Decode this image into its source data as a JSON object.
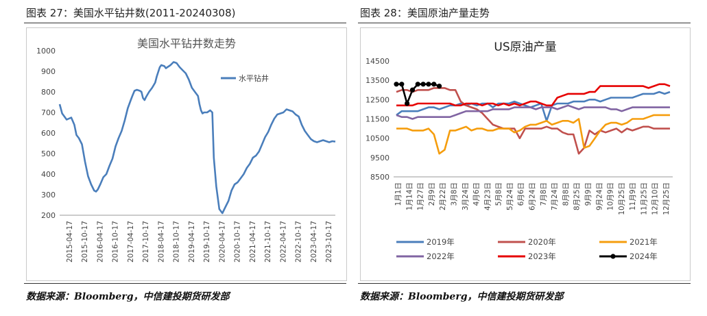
{
  "left_panel": {
    "figure_title": "图表 27：美国水平钻井数(2011-20240308)",
    "source": "数据来源：Bloomberg，中信建投期货研发部",
    "chart_data": {
      "type": "line",
      "title": "美国水平钻井数走势",
      "ylim": [
        200,
        1000
      ],
      "yticks": [
        200,
        300,
        400,
        500,
        600,
        700,
        800,
        900,
        1000
      ],
      "xticks": [
        "2015-04-17",
        "2015-10-17",
        "2016-04-17",
        "2016-10-17",
        "2017-04-17",
        "2017-10-17",
        "2018-04-17",
        "2018-10-17",
        "2019-04-17",
        "2019-10-17",
        "2020-04-17",
        "2020-10-17",
        "2021-04-17",
        "2021-10-17",
        "2022-04-17",
        "2022-10-17",
        "2023-04-17",
        "2023-10-17"
      ],
      "xrange": [
        2015.17,
        2024.2
      ],
      "color": "#4a7ebb",
      "series": [
        {
          "name": "水平钻井",
          "x": [
            2015.17,
            2015.25,
            2015.4,
            2015.55,
            2015.65,
            2015.72,
            2015.8,
            2015.9,
            2016.0,
            2016.1,
            2016.2,
            2016.3,
            2016.36,
            2016.42,
            2016.5,
            2016.6,
            2016.7,
            2016.8,
            2016.9,
            2017.0,
            2017.1,
            2017.2,
            2017.3,
            2017.4,
            2017.5,
            2017.55,
            2017.62,
            2017.7,
            2017.8,
            2017.85,
            2017.9,
            2017.95,
            2018.0,
            2018.1,
            2018.2,
            2018.3,
            2018.35,
            2018.45,
            2018.5,
            2018.6,
            2018.65,
            2018.7,
            2018.75,
            2018.8,
            2018.9,
            2019.0,
            2019.1,
            2019.2,
            2019.3,
            2019.4,
            2019.5,
            2019.6,
            2019.7,
            2019.75,
            2019.8,
            2019.85,
            2019.9,
            2020.0,
            2020.1,
            2020.17,
            2020.22,
            2020.3,
            2020.4,
            2020.5,
            2020.6,
            2020.7,
            2020.8,
            2020.9,
            2021.0,
            2021.1,
            2021.2,
            2021.3,
            2021.4,
            2021.5,
            2021.6,
            2021.7,
            2021.8,
            2021.9,
            2022.0,
            2022.1,
            2022.2,
            2022.3,
            2022.4,
            2022.5,
            2022.6,
            2022.7,
            2022.8,
            2022.9,
            2023.0,
            2023.1,
            2023.2,
            2023.3,
            2023.4,
            2023.5,
            2023.6,
            2023.7,
            2023.8,
            2023.9,
            2024.0,
            2024.1,
            2024.2
          ],
          "y": [
            740,
            695,
            665,
            675,
            640,
            590,
            575,
            545,
            460,
            390,
            350,
            320,
            315,
            325,
            350,
            385,
            400,
            440,
            475,
            535,
            575,
            610,
            660,
            720,
            760,
            780,
            805,
            810,
            805,
            800,
            770,
            760,
            775,
            800,
            820,
            845,
            875,
            920,
            930,
            925,
            915,
            920,
            925,
            930,
            945,
            940,
            920,
            905,
            890,
            860,
            820,
            800,
            780,
            740,
            710,
            695,
            700,
            700,
            710,
            700,
            480,
            340,
            230,
            210,
            240,
            270,
            320,
            350,
            360,
            380,
            400,
            430,
            450,
            480,
            490,
            510,
            545,
            580,
            605,
            640,
            670,
            690,
            695,
            700,
            715,
            710,
            705,
            690,
            680,
            640,
            610,
            590,
            570,
            560,
            555,
            560,
            565,
            560,
            555,
            560,
            558
          ]
        }
      ]
    }
  },
  "right_panel": {
    "figure_title": "图表 28：美国原油产量走势",
    "source": "数据来源：Bloomberg，中信建投期货研发部",
    "chart_data": {
      "type": "line",
      "title": "US原油产量",
      "ylim": [
        8500,
        14500
      ],
      "yticks": [
        8500,
        9500,
        10500,
        11500,
        12500,
        13500,
        14500
      ],
      "xcategories": [
        "1月1日",
        "1月14日",
        "1月27日",
        "2月9日",
        "2月22日",
        "3月8日",
        "3月24日",
        "4月6日",
        "4月23日",
        "5月8日",
        "5月24日",
        "6月6日",
        "6月24日",
        "7月8日",
        "7月24日",
        "8月8日",
        "8月25日",
        "9月9日",
        "9月24日",
        "10月9日",
        "10月25日",
        "11月9日",
        "11月25日",
        "12月10日",
        "12月25日"
      ],
      "legend": [
        "2019年",
        "2020年",
        "2021年",
        "2022年",
        "2023年",
        "2024年"
      ],
      "series": [
        {
          "name": "2019年",
          "color": "#4a7ebb",
          "y": [
            11700,
            11900,
            11900,
            11900,
            11900,
            12000,
            12100,
            12100,
            12000,
            12100,
            12200,
            12200,
            12300,
            12200,
            12300,
            12200,
            12300,
            12300,
            12100,
            12300,
            12300,
            12300,
            12400,
            12300,
            12200,
            12100,
            12200,
            12300,
            11400,
            12200,
            12300,
            12300,
            12300,
            12400,
            12400,
            12400,
            12500,
            12500,
            12400,
            12500,
            12600,
            12600,
            12600,
            12600,
            12600,
            12700,
            12800,
            12800,
            12800,
            12900,
            12800,
            12900
          ]
        },
        {
          "name": "2020年",
          "color": "#c0504d",
          "y": [
            12900,
            13000,
            13000,
            12900,
            13000,
            13000,
            13000,
            13100,
            13100,
            13100,
            13000,
            13000,
            12400,
            12200,
            12100,
            12000,
            11800,
            11500,
            11200,
            11100,
            11000,
            11000,
            11000,
            10500,
            11000,
            11000,
            11000,
            11000,
            11100,
            11000,
            11000,
            10800,
            10700,
            10700,
            9700,
            10000,
            10900,
            10700,
            10900,
            10800,
            10900,
            11000,
            10800,
            11000,
            10900,
            11000,
            11100,
            11100,
            11000,
            11000,
            11000,
            11000
          ]
        },
        {
          "name": "2021年",
          "color": "#f59d0d",
          "y": [
            11000,
            11000,
            11000,
            10900,
            10900,
            10900,
            11000,
            10700,
            9700,
            9900,
            10900,
            10900,
            11000,
            11100,
            10900,
            11000,
            11000,
            10900,
            10900,
            11000,
            11000,
            11000,
            10800,
            10900,
            11100,
            11200,
            11200,
            11300,
            11400,
            11200,
            11300,
            11400,
            11400,
            11300,
            11500,
            10000,
            10100,
            10500,
            10900,
            11200,
            11300,
            11300,
            11200,
            11300,
            11500,
            11500,
            11500,
            11600,
            11700,
            11700,
            11700,
            11700
          ]
        },
        {
          "name": "2022年",
          "color": "#8064a2",
          "y": [
            11700,
            11600,
            11600,
            11500,
            11600,
            11600,
            11600,
            11600,
            11600,
            11600,
            11600,
            11700,
            11800,
            11900,
            11900,
            11900,
            11900,
            11900,
            12000,
            12000,
            12000,
            12000,
            12100,
            12100,
            12100,
            12100,
            12000,
            12100,
            12100,
            12100,
            12000,
            12100,
            12200,
            12100,
            12000,
            12100,
            12100,
            12100,
            12100,
            12100,
            12000,
            12000,
            11900,
            12000,
            12100,
            12100,
            12100,
            12100,
            12100,
            12100,
            12100,
            12100
          ]
        },
        {
          "name": "2023年",
          "color": "#e60000",
          "y": [
            12200,
            12200,
            12200,
            12200,
            12300,
            12300,
            12300,
            12300,
            12300,
            12300,
            12300,
            12200,
            12200,
            12300,
            12300,
            12300,
            12200,
            12300,
            12300,
            12200,
            12300,
            12200,
            12300,
            12200,
            12300,
            12400,
            12400,
            12300,
            12200,
            12200,
            12600,
            12700,
            12800,
            12800,
            12800,
            12800,
            12900,
            12900,
            13200,
            13200,
            13200,
            13200,
            13200,
            13200,
            13200,
            13200,
            13200,
            13100,
            13200,
            13300,
            13300,
            13200
          ]
        },
        {
          "name": "2024年",
          "color": "#000000",
          "y": [
            13300,
            13300,
            12300,
            13000,
            13300,
            13300,
            13300,
            13300,
            13200
          ]
        }
      ]
    }
  }
}
